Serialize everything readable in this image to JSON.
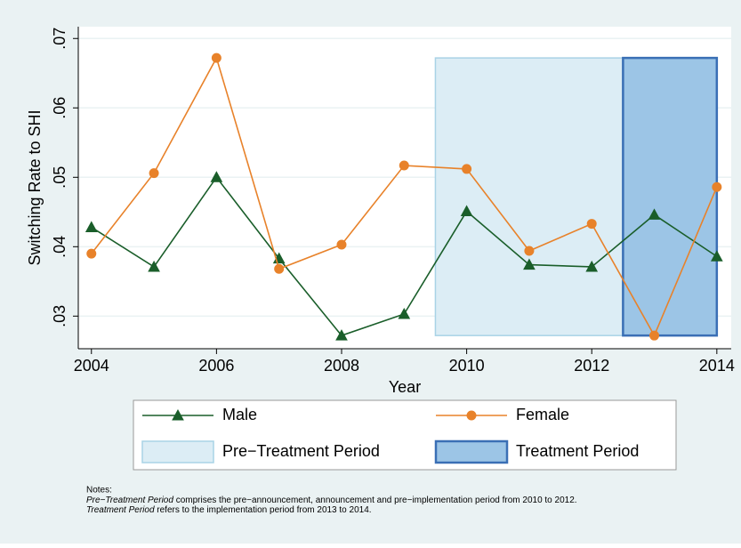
{
  "chart_data": {
    "type": "line",
    "x_label": "Year",
    "y_label": "Switching Rate to SHI",
    "x": [
      2004,
      2005,
      2006,
      2007,
      2008,
      2009,
      2010,
      2011,
      2012,
      2013,
      2014
    ],
    "series": [
      {
        "name": "Male",
        "color": "#1a5e2a",
        "marker": "triangle",
        "values": [
          0.0428,
          0.0371,
          0.05,
          0.0383,
          0.0272,
          0.0303,
          0.0451,
          0.0374,
          0.0371,
          0.0446,
          0.0386
        ]
      },
      {
        "name": "Female",
        "color": "#e8822a",
        "marker": "circle",
        "values": [
          0.039,
          0.0506,
          0.0672,
          0.0368,
          0.0403,
          0.0517,
          0.0512,
          0.0394,
          0.0433,
          0.0272,
          0.0486
        ]
      }
    ],
    "periods": [
      {
        "name": "Pre−Treatment Period",
        "start": 2009.5,
        "end": 2012.5,
        "ymin": 0.0272,
        "ymax": 0.0672,
        "color": "#dcedf5",
        "edge": "#a9d3e6"
      },
      {
        "name": "Treatment Period",
        "start": 2012.5,
        "end": 2014,
        "ymin": 0.0272,
        "ymax": 0.0672,
        "color": "#9cc5e6",
        "edge": "#3a6fb5"
      }
    ],
    "xlim": [
      2003.79,
      2014.23
    ],
    "xticks": [
      2004,
      2006,
      2008,
      2010,
      2012,
      2014
    ],
    "ylim": [
      0.0253,
      0.0717
    ],
    "yticks": [
      {
        "value": 0.03,
        "label": ".03"
      },
      {
        "value": 0.04,
        "label": ".04"
      },
      {
        "value": 0.05,
        "label": ".05"
      },
      {
        "value": 0.06,
        "label": ".06"
      },
      {
        "value": 0.07,
        "label": ".07"
      }
    ],
    "grid": true
  },
  "notes": {
    "heading": "Notes:",
    "lines": [
      {
        "italic": "Pre−Treatment Period",
        "text": " comprises the pre−announcement, announcement and pre−implementation period from 2010 to 2012."
      },
      {
        "italic": "Treatment Period",
        "text": " refers to the implementation period from 2013 to 2014."
      }
    ]
  }
}
